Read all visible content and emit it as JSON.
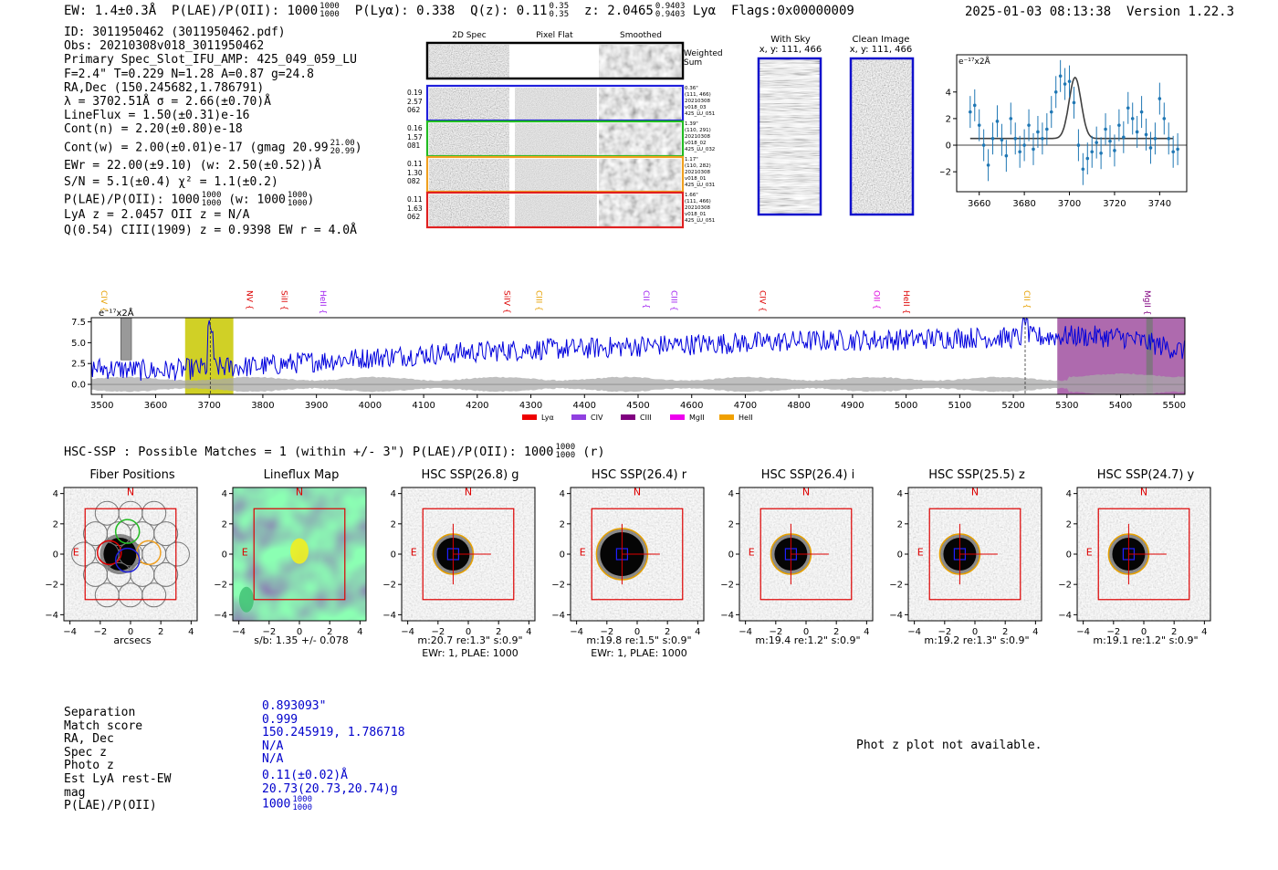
{
  "header": {
    "ew": "EW: 1.4±0.3Å",
    "plae": "P(LAE)/P(OII): 1000",
    "plae_frac_hi": "1000",
    "plae_frac_lo": "1000",
    "plya": "P(Lyα): 0.338",
    "qz": "Q(z): 0.11",
    "qz_hi": "0.35",
    "qz_lo": "0.35",
    "z": "z: 2.0465",
    "z_hi": "0.9403",
    "z_lo": "0.9403",
    "line": "Lyα",
    "flags": "Flags:0x00000009",
    "timestamp": "2025-01-03 08:13:38",
    "version": "Version 1.22.3"
  },
  "info": {
    "lines": [
      "ID: 3011950462 (3011950462.pdf)",
      "Obs: 20210308v018_3011950462",
      "Primary Spec_Slot_IFU_AMP: 425_049_059_LU",
      "F=2.4\"  T=0.229  N=1.28  A=0.87  g=24.8",
      "RA,Dec (150.245682,1.786791)",
      "λ = 3702.51Å  σ = 2.66(±0.70)Å",
      "LineFlux = 1.50(±0.31)e-16",
      "Cont(n) = 2.20(±0.80)e-18"
    ],
    "contw": "Cont(w) = 2.00(±0.01)e-17 (gmag 20.99",
    "contw_hi": "21.00",
    "contw_lo": "20.99",
    "ewr": "EWr = 22.00(±9.10) (w: 2.50(±0.52))Å",
    "sn": "S/N = 5.1(±0.4)  χ² = 1.1(±0.2)",
    "plae": "P(LAE)/P(OII): 1000",
    "plae_hi": "1000",
    "plae_lo": "1000",
    "plae_w": "(w: 1000",
    "plae_w_hi": "1000",
    "plae_w_lo": "1000",
    "lya": "LyA z = 2.0457  OII z = N/A",
    "ciii": "Q(0.54) CIII(1909) z = 0.9398  EW r = 4.0Å"
  },
  "cutouts": {
    "col_titles": [
      "2D Spec",
      "Pixel Flat",
      "Smoothed"
    ],
    "weighted_sum": "Weighted Sum",
    "rows": [
      {
        "left": [
          "0.19",
          "2.57",
          "062"
        ],
        "right": [
          "0.36\"",
          "(111, 466)",
          "20210308",
          "v018_03",
          "425_LU_051"
        ],
        "color": "#1f1fdb"
      },
      {
        "left": [
          "0.16",
          "1.57",
          "081"
        ],
        "right": [
          "1.39\"",
          "(110, 291)",
          "20210308",
          "v018_02",
          "425_LU_032"
        ],
        "color": "#22bb22"
      },
      {
        "left": [
          "0.11",
          "1.30",
          "082"
        ],
        "right": [
          "1.17\"",
          "(110, 282)",
          "20210308",
          "v018_01",
          "425_LU_031"
        ],
        "color": "#f0a020"
      },
      {
        "left": [
          "0.11",
          "1.63",
          "062"
        ],
        "right": [
          "1.66\"",
          "(111, 466)",
          "20210308",
          "v018_01",
          "425_LU_051"
        ],
        "color": "#e02020"
      }
    ]
  },
  "sky": {
    "title": "With Sky",
    "coords": "x, y: 111, 466"
  },
  "clean": {
    "title": "Clean Image",
    "coords": "x, y: 111, 466"
  },
  "colors": {
    "blue": "#0000dd",
    "yellow": "#c8c800",
    "purple": "#a050a0",
    "red": "#dd0000",
    "orange": "#e6a000",
    "fitline": "#404040",
    "errbar": "#1f77b4"
  },
  "line_plot": {
    "chart_data": {
      "type": "scatter",
      "title": "",
      "ylabel": "e⁻¹⁷x2Å",
      "xlim": [
        3650,
        3752
      ],
      "ylim": [
        -3.5,
        6.8
      ],
      "xticks": [
        3660,
        3680,
        3700,
        3720,
        3740
      ],
      "yticks": [
        -2,
        0,
        2,
        4
      ],
      "x": [
        3656,
        3658,
        3660,
        3662,
        3664,
        3666,
        3668,
        3670,
        3672,
        3674,
        3676,
        3678,
        3680,
        3682,
        3684,
        3686,
        3688,
        3690,
        3692,
        3694,
        3696,
        3698,
        3700,
        3702,
        3704,
        3706,
        3708,
        3710,
        3712,
        3714,
        3716,
        3718,
        3720,
        3722,
        3724,
        3726,
        3728,
        3730,
        3732,
        3734,
        3736,
        3738,
        3740,
        3742,
        3744,
        3746,
        3748
      ],
      "y": [
        2.5,
        3.0,
        1.5,
        0.0,
        -1.5,
        0.5,
        1.8,
        0.4,
        -0.8,
        2.0,
        0.5,
        -0.5,
        0.0,
        1.5,
        -0.3,
        1.0,
        0.5,
        1.2,
        2.5,
        4.0,
        5.2,
        4.6,
        4.8,
        3.2,
        0.0,
        -1.8,
        -1.0,
        -0.5,
        0.2,
        -0.6,
        1.2,
        0.3,
        -0.4,
        1.5,
        0.6,
        2.8,
        2.0,
        1.0,
        2.5,
        0.8,
        -0.2,
        0.5,
        3.5,
        2.0,
        0.5,
        -0.5,
        -0.3
      ],
      "fit": {
        "center": 3702.5,
        "sigma": 2.66,
        "amp": 4.6,
        "base": 0.5
      }
    }
  },
  "wide_spectrum": {
    "chart_data": {
      "type": "line",
      "ylabel": "e⁻¹⁷x2Å",
      "xlim": [
        3480,
        5520
      ],
      "ylim": [
        -1.2,
        8.0
      ],
      "xticks": [
        3500,
        3600,
        3700,
        3800,
        3900,
        4000,
        4100,
        4200,
        4300,
        4400,
        4500,
        4600,
        4700,
        4800,
        4900,
        5000,
        5100,
        5200,
        5300,
        5400,
        5500
      ],
      "yticks": [
        0.0,
        2.5,
        5.0,
        7.5
      ],
      "line_labels": [
        {
          "name": "CIV",
          "x": 3475,
          "color": "#e6a000"
        },
        {
          "name": "NV",
          "x": 3765,
          "color": "#dd0000"
        },
        {
          "name": "SiII",
          "x": 3830,
          "color": "#dd0000"
        },
        {
          "name": "HeII",
          "x": 3902,
          "color": "#a020f0"
        },
        {
          "name": "SiIV",
          "x": 4245,
          "color": "#dd0000"
        },
        {
          "name": "CIII",
          "x": 4305,
          "color": "#e6a000"
        },
        {
          "name": "CII",
          "x": 4505,
          "color": "#a020f0"
        },
        {
          "name": "CIII",
          "x": 4557,
          "color": "#a020f0"
        },
        {
          "name": "CIV",
          "x": 4722,
          "color": "#dd0000"
        },
        {
          "name": "OII",
          "x": 4935,
          "color": "#dd00dd"
        },
        {
          "name": "HeII",
          "x": 4990,
          "color": "#dd0000"
        },
        {
          "name": "CII",
          "x": 5215,
          "color": "#e6a000"
        },
        {
          "name": "MgII",
          "x": 5440,
          "color": "#800080"
        }
      ],
      "legend": [
        {
          "name": "Lyα",
          "color": "#ee0000"
        },
        {
          "name": "CIV",
          "color": "#9040e0"
        },
        {
          "name": "CIII",
          "color": "#800080"
        },
        {
          "name": "MgII",
          "color": "#ee00ee"
        },
        {
          "name": "HeII",
          "color": "#f0a000"
        }
      ],
      "regions": [
        {
          "from": 3655,
          "to": 3745,
          "color": "#c8c800"
        },
        {
          "from": 5282,
          "to": 5520,
          "color": "#a050a0"
        }
      ],
      "markers": [
        3702,
        5222
      ],
      "anchors": [
        [
          3480,
          2.0
        ],
        [
          3600,
          1.6
        ],
        [
          3700,
          2.0
        ],
        [
          3800,
          2.2
        ],
        [
          3900,
          2.8
        ],
        [
          4000,
          3.2
        ],
        [
          4100,
          3.6
        ],
        [
          4200,
          3.9
        ],
        [
          4300,
          4.2
        ],
        [
          4400,
          4.3
        ],
        [
          4500,
          4.6
        ],
        [
          4600,
          4.8
        ],
        [
          4700,
          5.0
        ],
        [
          4800,
          5.2
        ],
        [
          4900,
          5.3
        ],
        [
          5000,
          5.4
        ],
        [
          5100,
          5.6
        ],
        [
          5200,
          5.6
        ],
        [
          5300,
          5.8
        ],
        [
          5400,
          5.7
        ],
        [
          5520,
          4.0
        ]
      ]
    }
  },
  "hsc": {
    "summary": "HSC-SSP : Possible Matches = 1 (within +/- 3\")  P(LAE)/P(OII): 1000",
    "summary_hi": "1000",
    "summary_lo": "1000",
    "summary_band": "(r)",
    "panels": [
      {
        "title": "Fiber Positions",
        "cap1": "arcsecs",
        "cap2": ""
      },
      {
        "title": "Lineflux Map",
        "cap1": "s/b: 1.35 +/- 0.078",
        "cap2": ""
      },
      {
        "title": "HSC SSP(26.8) g",
        "cap1": "m:20.7  re:1.3\"  s:0.9\"",
        "cap2": "EWr: 1, PLAE: 1000"
      },
      {
        "title": "HSC SSP(26.4) r",
        "cap1": "m:19.8  re:1.5\"  s:0.9\"",
        "cap2": "EWr: 1, PLAE: 1000"
      },
      {
        "title": "HSC SSP(26.4) i",
        "cap1": "m:19.4  re:1.2\"  s:0.9\"",
        "cap2": ""
      },
      {
        "title": "HSC SSP(25.5) z",
        "cap1": "m:19.2  re:1.3\"  s:0.9\"",
        "cap2": ""
      },
      {
        "title": "HSC SSP(24.7) y",
        "cap1": "m:19.1  re:1.2\"  s:0.9\"",
        "cap2": ""
      }
    ],
    "ticks": [
      "−4",
      "−2",
      "0",
      "2",
      "4"
    ],
    "north": "N",
    "east": "E"
  },
  "match": {
    "labels": [
      "Separation",
      "Match score",
      "RA, Dec",
      "Spec z",
      "Photo z",
      "Est LyA rest-EW",
      "mag",
      "P(LAE)/P(OII)"
    ],
    "values": [
      "0.893093\"",
      "0.999",
      "150.245919, 1.786718",
      "N/A",
      "N/A",
      "0.11(±0.02)Å",
      "20.73(20.73,20.74)g",
      "1000"
    ],
    "plae_hi": "1000",
    "plae_lo": "1000",
    "photz_msg": "Phot z plot not available."
  }
}
